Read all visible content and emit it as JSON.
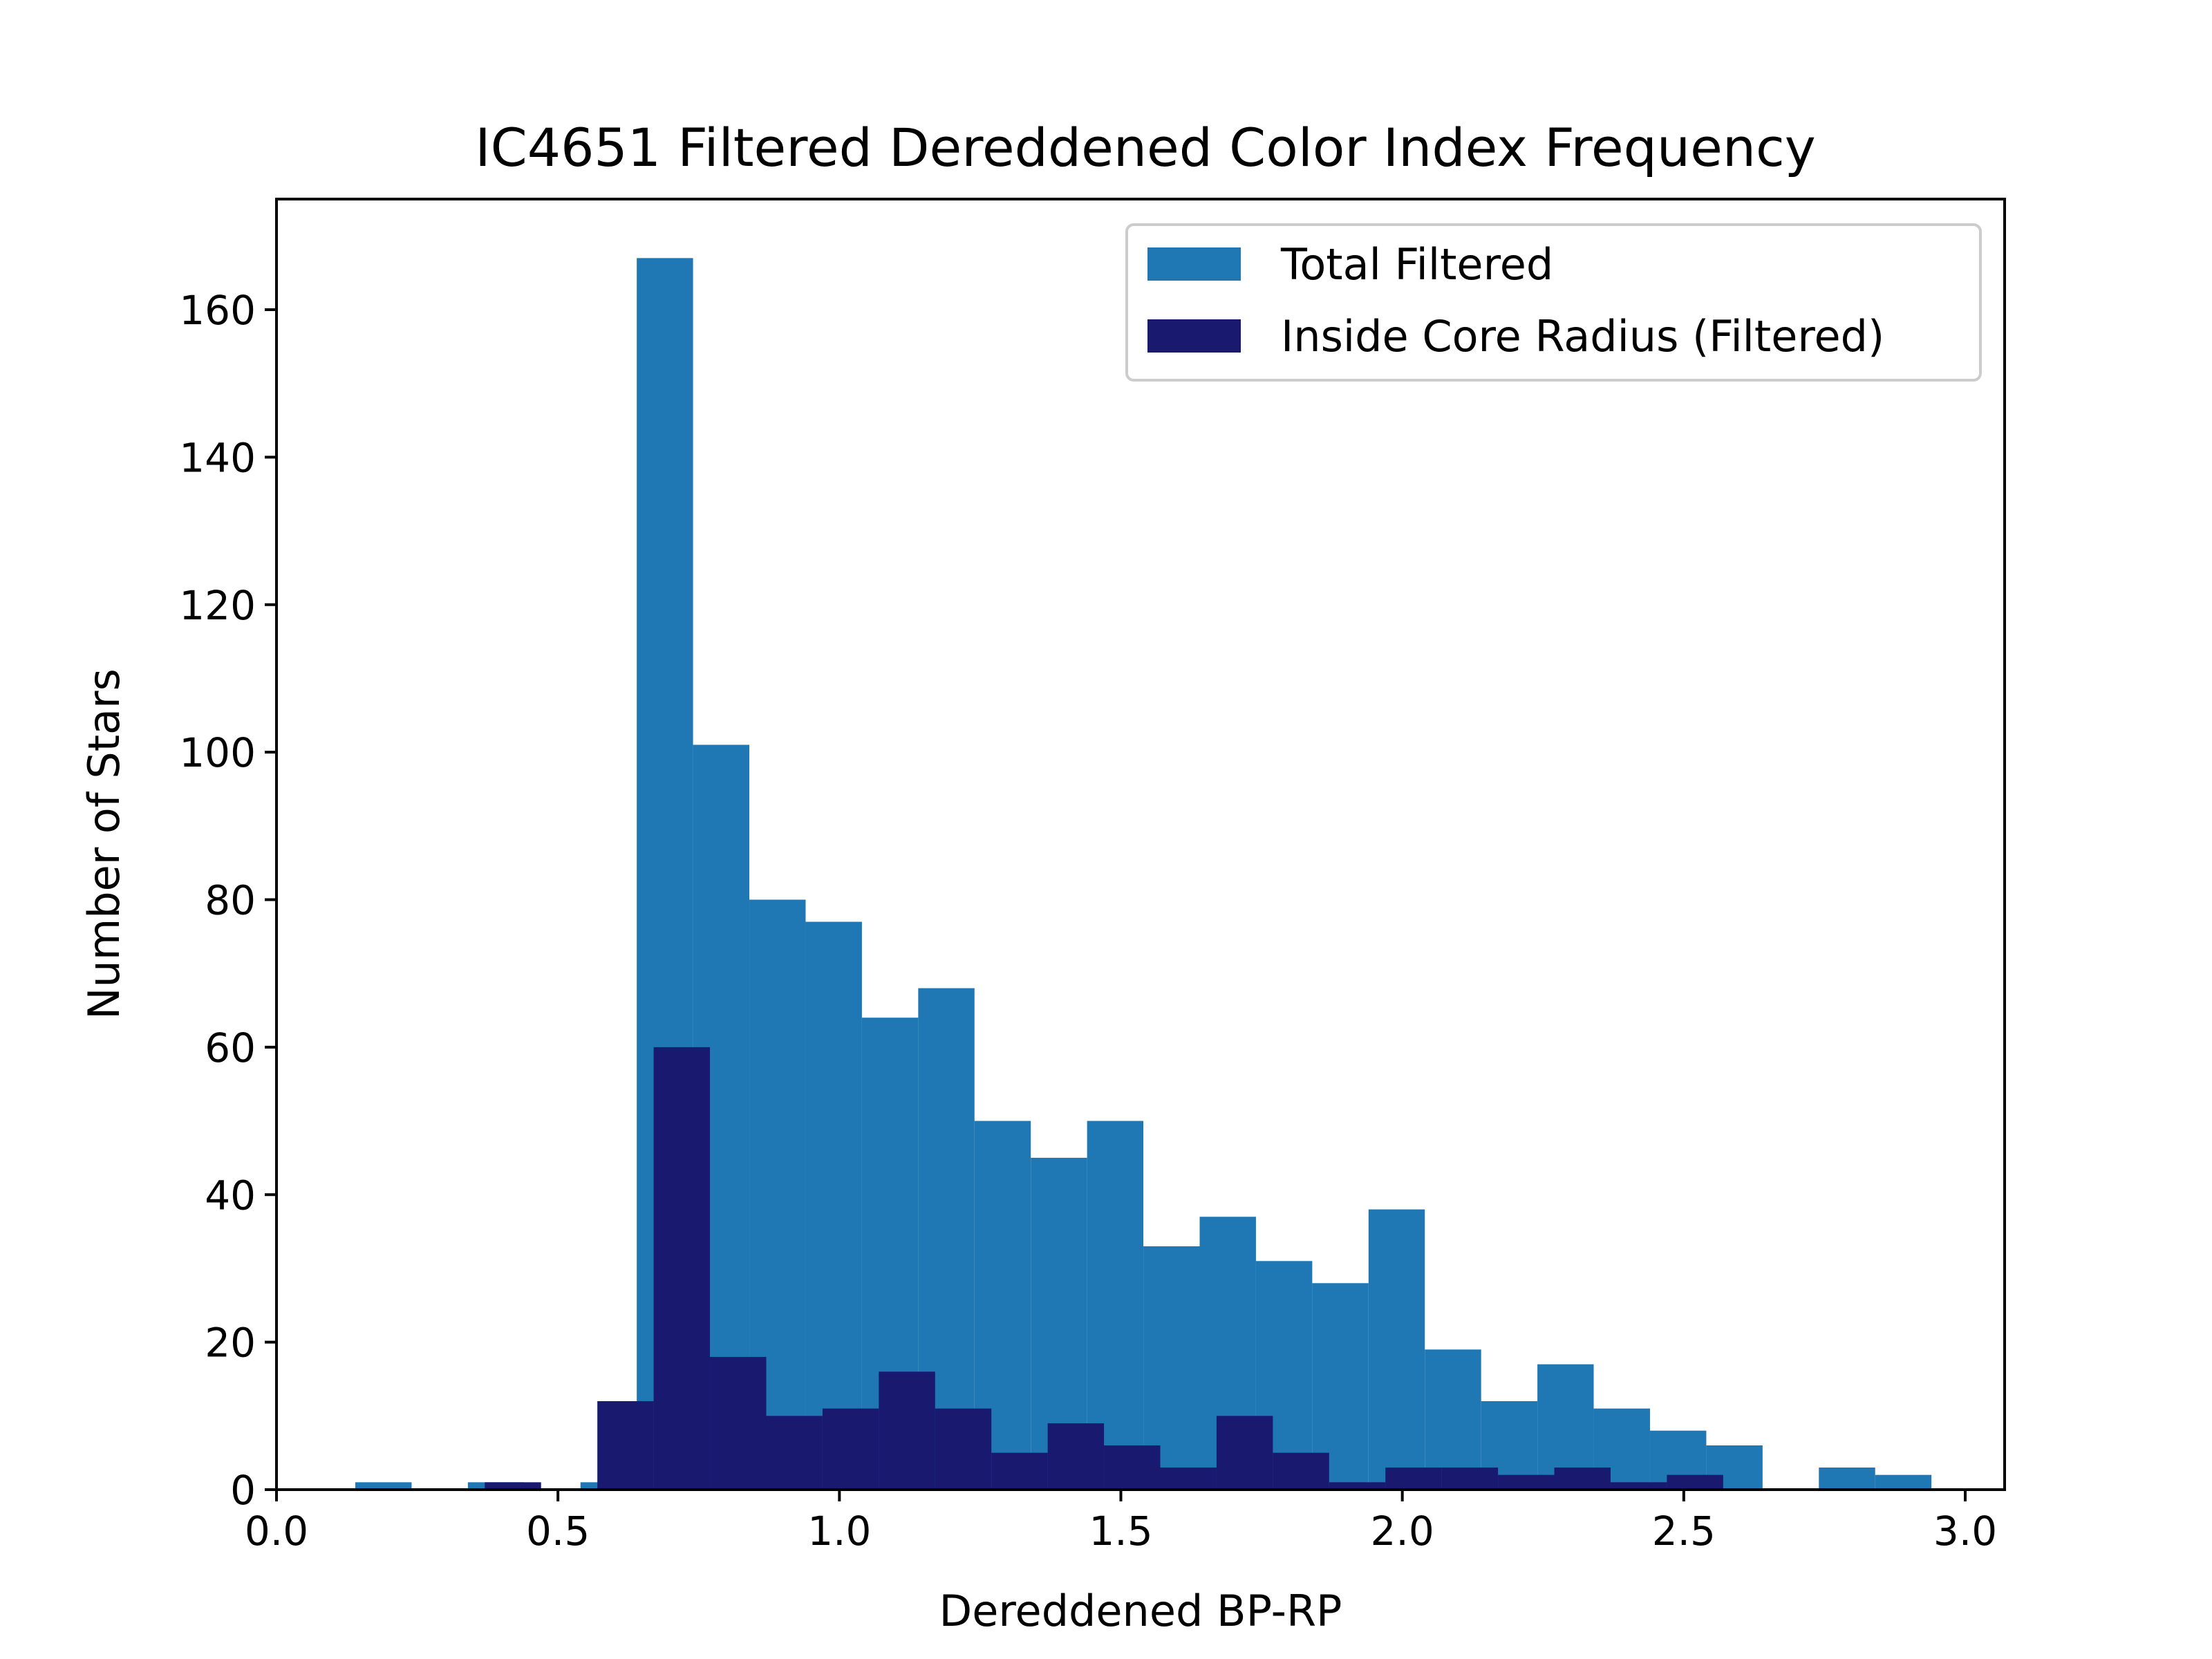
{
  "chart_data": {
    "type": "bar",
    "title": "IC4651 Filtered Dereddened Color Index Frequency",
    "xlabel": "Dereddened BP-RP",
    "ylabel": "Number of Stars",
    "xlim": [
      0.0,
      3.07
    ],
    "ylim": [
      0,
      175
    ],
    "xticks": [
      0.0,
      0.5,
      1.0,
      1.5,
      2.0,
      2.5,
      3.0
    ],
    "xtick_labels": [
      "0.0",
      "0.5",
      "1.0",
      "1.5",
      "2.0",
      "2.5",
      "3.0"
    ],
    "yticks": [
      0,
      20,
      40,
      60,
      80,
      100,
      120,
      140,
      160
    ],
    "ytick_labels": [
      "0",
      "20",
      "40",
      "60",
      "80",
      "100",
      "120",
      "140",
      "160"
    ],
    "grid": false,
    "legend_position": "top-right",
    "series": [
      {
        "name": "Total Filtered",
        "color": "#1f77b4",
        "bins": [
          {
            "x0": 0.14,
            "x1": 0.24,
            "count": 1
          },
          {
            "x0": 0.34,
            "x1": 0.44,
            "count": 1
          },
          {
            "x0": 0.54,
            "x1": 0.64,
            "count": 1
          },
          {
            "x0": 0.64,
            "x1": 0.74,
            "count": 167
          },
          {
            "x0": 0.74,
            "x1": 0.84,
            "count": 101
          },
          {
            "x0": 0.84,
            "x1": 0.94,
            "count": 80
          },
          {
            "x0": 0.94,
            "x1": 1.04,
            "count": 77
          },
          {
            "x0": 1.04,
            "x1": 1.14,
            "count": 64
          },
          {
            "x0": 1.14,
            "x1": 1.24,
            "count": 68
          },
          {
            "x0": 1.24,
            "x1": 1.34,
            "count": 50
          },
          {
            "x0": 1.34,
            "x1": 1.44,
            "count": 45
          },
          {
            "x0": 1.44,
            "x1": 1.54,
            "count": 50
          },
          {
            "x0": 1.54,
            "x1": 1.64,
            "count": 33
          },
          {
            "x0": 1.64,
            "x1": 1.74,
            "count": 37
          },
          {
            "x0": 1.74,
            "x1": 1.84,
            "count": 31
          },
          {
            "x0": 1.84,
            "x1": 1.94,
            "count": 28
          },
          {
            "x0": 1.94,
            "x1": 2.04,
            "count": 38
          },
          {
            "x0": 2.04,
            "x1": 2.14,
            "count": 19
          },
          {
            "x0": 2.14,
            "x1": 2.24,
            "count": 12
          },
          {
            "x0": 2.24,
            "x1": 2.34,
            "count": 17
          },
          {
            "x0": 2.34,
            "x1": 2.44,
            "count": 11
          },
          {
            "x0": 2.44,
            "x1": 2.54,
            "count": 8
          },
          {
            "x0": 2.54,
            "x1": 2.64,
            "count": 6
          },
          {
            "x0": 2.74,
            "x1": 2.84,
            "count": 3
          },
          {
            "x0": 2.84,
            "x1": 2.94,
            "count": 2
          }
        ]
      },
      {
        "name": "Inside Core Radius (Filtered)",
        "color": "#191970",
        "bins": [
          {
            "x0": 0.37,
            "x1": 0.47,
            "count": 1
          },
          {
            "x0": 0.57,
            "x1": 0.67,
            "count": 12
          },
          {
            "x0": 0.67,
            "x1": 0.77,
            "count": 60
          },
          {
            "x0": 0.77,
            "x1": 0.87,
            "count": 18
          },
          {
            "x0": 0.87,
            "x1": 0.97,
            "count": 10
          },
          {
            "x0": 0.97,
            "x1": 1.07,
            "count": 11
          },
          {
            "x0": 1.07,
            "x1": 1.17,
            "count": 16
          },
          {
            "x0": 1.17,
            "x1": 1.27,
            "count": 11
          },
          {
            "x0": 1.27,
            "x1": 1.37,
            "count": 5
          },
          {
            "x0": 1.37,
            "x1": 1.47,
            "count": 9
          },
          {
            "x0": 1.47,
            "x1": 1.57,
            "count": 6
          },
          {
            "x0": 1.57,
            "x1": 1.67,
            "count": 3
          },
          {
            "x0": 1.67,
            "x1": 1.77,
            "count": 10
          },
          {
            "x0": 1.77,
            "x1": 1.87,
            "count": 5
          },
          {
            "x0": 1.87,
            "x1": 1.97,
            "count": 1
          },
          {
            "x0": 1.97,
            "x1": 2.07,
            "count": 3
          },
          {
            "x0": 2.07,
            "x1": 2.17,
            "count": 3
          },
          {
            "x0": 2.17,
            "x1": 2.27,
            "count": 2
          },
          {
            "x0": 2.27,
            "x1": 2.37,
            "count": 3
          },
          {
            "x0": 2.37,
            "x1": 2.47,
            "count": 1
          },
          {
            "x0": 2.47,
            "x1": 2.57,
            "count": 2
          }
        ]
      }
    ]
  }
}
